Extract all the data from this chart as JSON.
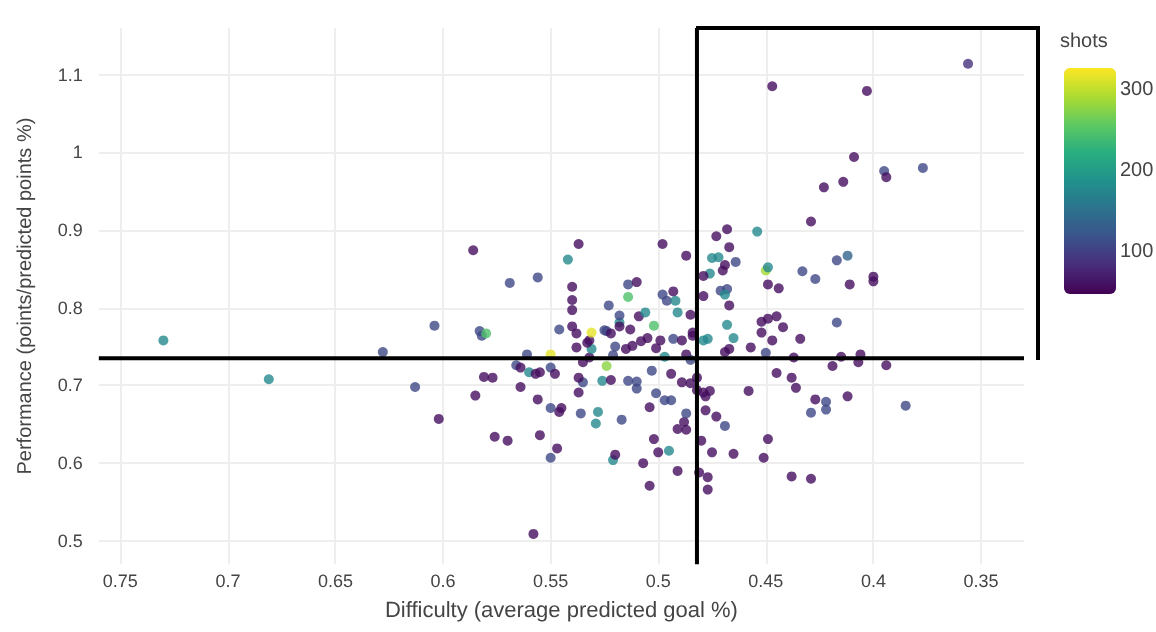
{
  "chart_data": {
    "type": "scatter",
    "xlabel": "Difficulty (average predicted goal %)",
    "ylabel": "Performance (points/predicted points %)",
    "clabel": "shots",
    "xlim": [
      0.76,
      0.33
    ],
    "xticks": [
      0.75,
      0.7,
      0.65,
      0.6,
      0.55,
      0.5,
      0.45,
      0.4,
      0.35
    ],
    "ylim": [
      0.47,
      1.16
    ],
    "yticks": [
      0.5,
      0.6,
      0.7,
      0.8,
      0.9,
      1,
      1.1
    ],
    "clim": [
      50,
      330
    ],
    "cticks": [
      100,
      200,
      300
    ],
    "grid": true,
    "marker": "circle",
    "ref_lines": [
      {
        "axis": "y",
        "value": 0.735,
        "color": "#000000"
      },
      {
        "axis": "x",
        "value": 0.482,
        "color": "#000000"
      }
    ],
    "x": [
      0.586,
      0.569,
      0.556,
      0.542,
      0.537,
      0.54,
      0.54,
      0.356,
      0.447,
      0.403,
      0.409,
      0.395,
      0.394,
      0.377,
      0.423,
      0.414,
      0.429,
      0.454,
      0.468,
      0.473,
      0.467,
      0.498,
      0.487,
      0.475,
      0.472,
      0.469,
      0.464,
      0.47,
      0.45,
      0.449,
      0.433,
      0.427,
      0.417,
      0.412,
      0.411,
      0.4,
      0.4,
      0.449,
      0.444,
      0.476,
      0.479,
      0.471,
      0.468,
      0.469,
      0.467,
      0.479,
      0.514,
      0.51,
      0.498,
      0.496,
      0.493,
      0.492,
      0.514,
      0.523,
      0.417,
      0.452,
      0.449,
      0.445,
      0.442,
      0.452,
      0.447,
      0.434,
      0.468,
      0.465,
      0.477,
      0.479,
      0.484,
      0.467,
      0.469,
      0.457,
      0.45,
      0.437,
      0.419,
      0.415,
      0.407,
      0.406,
      0.394,
      0.445,
      0.458,
      0.438,
      0.436,
      0.427,
      0.422,
      0.422,
      0.429,
      0.412,
      0.385,
      0.476,
      0.479,
      0.478,
      0.473,
      0.469,
      0.449,
      0.451,
      0.465,
      0.475,
      0.481,
      0.477,
      0.477,
      0.438,
      0.429,
      0.48,
      0.504,
      0.491,
      0.507,
      0.521,
      0.52,
      0.5,
      0.495,
      0.502,
      0.488,
      0.487,
      0.491,
      0.487,
      0.478,
      0.501,
      0.497,
      0.494,
      0.504,
      0.503,
      0.494,
      0.489,
      0.485,
      0.482,
      0.51,
      0.51,
      0.514,
      0.526,
      0.522,
      0.535,
      0.537,
      0.536,
      0.528,
      0.529,
      0.517,
      0.524,
      0.532,
      0.524,
      0.518,
      0.509,
      0.506,
      0.502,
      0.515,
      0.512,
      0.521,
      0.497,
      0.487,
      0.485,
      0.484,
      0.485,
      0.499,
      0.493,
      0.538,
      0.73,
      0.681,
      0.628,
      0.604,
      0.613,
      0.602,
      0.585,
      0.581,
      0.577,
      0.583,
      0.582,
      0.58,
      0.576,
      0.57,
      0.566,
      0.564,
      0.564,
      0.561,
      0.56,
      0.557,
      0.555,
      0.556,
      0.555,
      0.558,
      0.55,
      0.547,
      0.55,
      0.546,
      0.545,
      0.55,
      0.548,
      0.55,
      0.546,
      0.54,
      0.54,
      0.538,
      0.537,
      0.531,
      0.532,
      0.531,
      0.533,
      0.525,
      0.522,
      0.518,
      0.518,
      0.513,
      0.505,
      0.508,
      0.52,
      0.501,
      0.491,
      0.489,
      0.482,
      0.535
    ],
    "values": [
      0.874,
      0.832,
      0.839,
      0.862,
      0.882,
      0.827,
      0.81,
      1.114,
      1.085,
      1.079,
      0.994,
      0.976,
      0.968,
      0.98,
      0.955,
      0.962,
      0.911,
      0.898,
      0.901,
      0.892,
      0.878,
      0.882,
      0.867,
      0.864,
      0.865,
      0.855,
      0.859,
      0.848,
      0.848,
      0.852,
      0.847,
      0.837,
      0.861,
      0.867,
      0.83,
      0.84,
      0.834,
      0.83,
      0.825,
      0.844,
      0.841,
      0.822,
      0.824,
      0.817,
      0.803,
      0.815,
      0.83,
      0.833,
      0.817,
      0.809,
      0.821,
      0.809,
      0.814,
      0.803,
      0.781,
      0.782,
      0.786,
      0.789,
      0.775,
      0.768,
      0.758,
      0.76,
      0.778,
      0.761,
      0.76,
      0.758,
      0.764,
      0.747,
      0.743,
      0.749,
      0.742,
      0.736,
      0.725,
      0.737,
      0.73,
      0.74,
      0.726,
      0.716,
      0.693,
      0.71,
      0.697,
      0.682,
      0.679,
      0.669,
      0.665,
      0.686,
      0.674,
      0.693,
      0.691,
      0.668,
      0.66,
      0.648,
      0.631,
      0.607,
      0.612,
      0.614,
      0.588,
      0.582,
      0.566,
      0.583,
      0.58,
      0.629,
      0.571,
      0.59,
      0.6,
      0.604,
      0.611,
      0.614,
      0.616,
      0.631,
      0.653,
      0.643,
      0.644,
      0.664,
      0.686,
      0.69,
      0.681,
      0.681,
      0.672,
      0.719,
      0.715,
      0.704,
      0.703,
      0.71,
      0.705,
      0.696,
      0.706,
      0.706,
      0.707,
      0.704,
      0.691,
      0.664,
      0.666,
      0.651,
      0.656,
      0.725,
      0.758,
      0.77,
      0.781,
      0.789,
      0.794,
      0.777,
      0.747,
      0.751,
      0.739,
      0.737,
      0.74,
      0.733,
      0.768,
      0.791,
      0.758,
      0.76,
      0.749,
      0.758,
      0.708,
      0.743,
      0.777,
      0.698,
      0.657,
      0.687,
      0.711,
      0.71,
      0.77,
      0.764,
      0.767,
      0.634,
      0.629,
      0.726,
      0.723,
      0.698,
      0.74,
      0.717,
      0.715,
      0.717,
      0.682,
      0.636,
      0.509,
      0.607,
      0.619,
      0.671,
      0.666,
      0.671,
      0.723,
      0.715,
      0.74,
      0.772,
      0.797,
      0.776,
      0.767,
      0.71,
      0.768,
      0.736,
      0.747,
      0.755,
      0.771,
      0.767,
      0.79,
      0.776,
      0.772,
      0.761,
      0.757,
      0.75,
      0.748,
      0.794,
      0.758,
      0.694,
      0.73
    ],
    "cvalues": [
      60,
      110,
      110,
      180,
      60,
      60,
      60,
      90,
      60,
      60,
      60,
      110,
      60,
      110,
      60,
      60,
      60,
      180,
      60,
      60,
      60,
      60,
      60,
      180,
      180,
      60,
      110,
      60,
      290,
      180,
      110,
      110,
      110,
      140,
      60,
      60,
      60,
      60,
      60,
      180,
      60,
      110,
      110,
      180,
      60,
      60,
      110,
      60,
      110,
      110,
      60,
      180,
      250,
      110,
      110,
      60,
      60,
      60,
      60,
      60,
      60,
      60,
      180,
      180,
      180,
      180,
      60,
      60,
      60,
      60,
      110,
      60,
      60,
      60,
      60,
      60,
      60,
      60,
      60,
      60,
      60,
      60,
      110,
      110,
      110,
      60,
      110,
      60,
      60,
      60,
      60,
      110,
      60,
      60,
      60,
      60,
      60,
      60,
      60,
      60,
      60,
      60,
      60,
      60,
      60,
      180,
      60,
      60,
      180,
      60,
      60,
      60,
      60,
      110,
      60,
      110,
      110,
      110,
      60,
      110,
      60,
      60,
      60,
      60,
      110,
      110,
      110,
      180,
      60,
      110,
      60,
      110,
      180,
      180,
      110,
      280,
      60,
      110,
      180,
      60,
      180,
      250,
      60,
      60,
      110,
      180,
      60,
      110,
      60,
      60,
      60,
      110,
      60,
      180,
      180,
      110,
      110,
      110,
      60,
      60,
      60,
      60,
      110,
      110,
      250,
      60,
      60,
      110,
      60,
      60,
      110,
      180,
      60,
      60,
      60,
      60,
      60,
      110,
      60,
      110,
      60,
      60,
      110,
      60,
      320,
      110,
      60,
      60,
      60,
      60,
      320,
      60,
      180,
      60,
      110,
      60,
      110,
      60,
      60,
      60,
      60,
      110,
      60,
      180,
      60,
      60,
      60
    ]
  }
}
